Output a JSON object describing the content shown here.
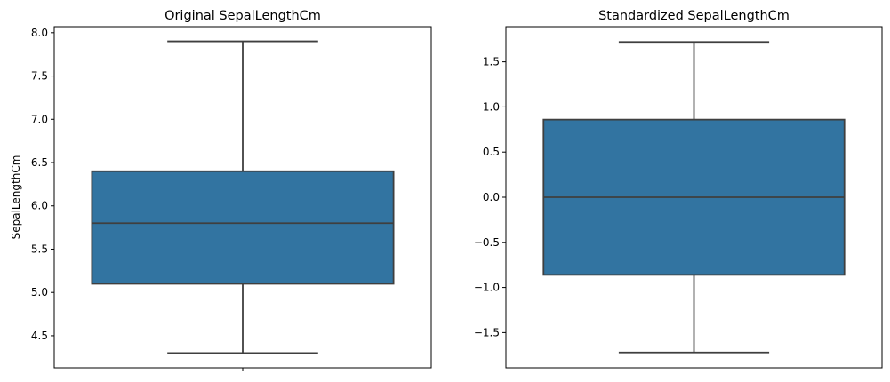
{
  "chart_data": [
    {
      "type": "box",
      "title": "Original SepalLengthCm",
      "xlabel": "",
      "ylabel": "SepalLengthCm",
      "ylim": [
        4.13,
        8.07
      ],
      "yticks": [
        "4.5",
        "5.0",
        "5.5",
        "6.0",
        "6.5",
        "7.0",
        "7.5",
        "8.0"
      ],
      "ytick_values": [
        4.5,
        5.0,
        5.5,
        6.0,
        6.5,
        7.0,
        7.5,
        8.0
      ],
      "box": {
        "whisker_low": 4.3,
        "q1": 5.1,
        "median": 5.8,
        "q3": 6.4,
        "whisker_high": 7.9
      },
      "grid": false,
      "colors": {
        "box_fill": "#3274a1",
        "line": "#3f3f3f"
      }
    },
    {
      "type": "box",
      "title": "Standardized SepalLengthCm",
      "xlabel": "",
      "ylabel": "",
      "ylim": [
        -1.89,
        1.89
      ],
      "yticks": [
        "−1.5",
        "−1.0",
        "−0.5",
        "0.0",
        "0.5",
        "1.0",
        "1.5"
      ],
      "ytick_values": [
        -1.5,
        -1.0,
        -0.5,
        0.0,
        0.5,
        1.0,
        1.5
      ],
      "box": {
        "whisker_low": -1.72,
        "q1": -0.86,
        "median": 0.0,
        "q3": 0.86,
        "whisker_high": 1.72
      },
      "grid": false,
      "colors": {
        "box_fill": "#3274a1",
        "line": "#3f3f3f"
      }
    }
  ]
}
